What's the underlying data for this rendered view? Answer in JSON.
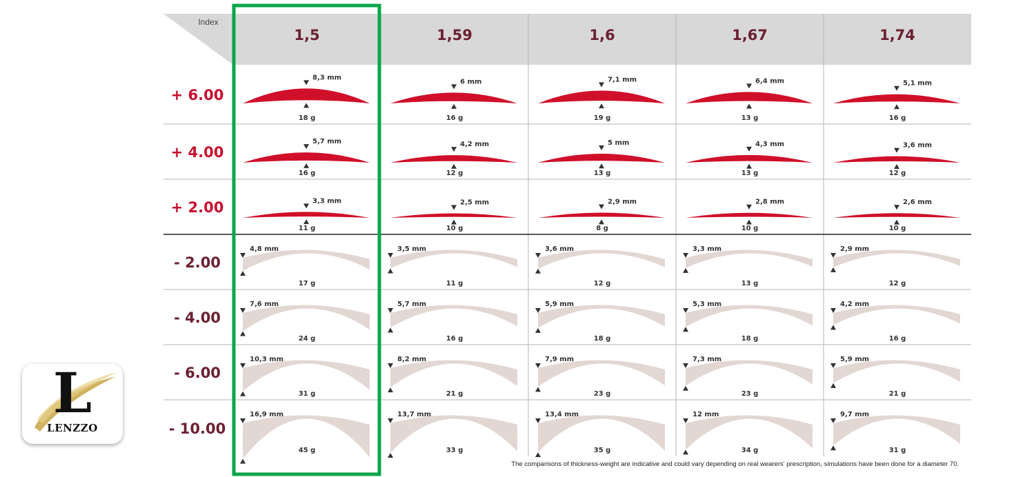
{
  "header": {
    "index_label": "Index",
    "columns": [
      "1,5",
      "1,59",
      "1,6",
      "1,67",
      "1,74"
    ]
  },
  "rows": [
    {
      "power": "+ 6.00",
      "sign": "plus",
      "cells": [
        {
          "thickness": "8,3 mm",
          "thickness_value": 8.3,
          "weight": "18 g"
        },
        {
          "thickness": "6 mm",
          "thickness_value": 6.0,
          "weight": "16 g"
        },
        {
          "thickness": "7,1 mm",
          "thickness_value": 7.1,
          "weight": "19 g"
        },
        {
          "thickness": "6,4 mm",
          "thickness_value": 6.4,
          "weight": "13 g"
        },
        {
          "thickness": "5,1 mm",
          "thickness_value": 5.1,
          "weight": "16 g"
        }
      ]
    },
    {
      "power": "+ 4.00",
      "sign": "plus",
      "cells": [
        {
          "thickness": "5,7 mm",
          "thickness_value": 5.7,
          "weight": "16 g"
        },
        {
          "thickness": "4,2 mm",
          "thickness_value": 4.2,
          "weight": "12 g"
        },
        {
          "thickness": "5 mm",
          "thickness_value": 5.0,
          "weight": "13 g"
        },
        {
          "thickness": "4,3 mm",
          "thickness_value": 4.3,
          "weight": "13 g"
        },
        {
          "thickness": "3,6 mm",
          "thickness_value": 3.6,
          "weight": "12 g"
        }
      ]
    },
    {
      "power": "+ 2.00",
      "sign": "plus",
      "cells": [
        {
          "thickness": "3,3 mm",
          "thickness_value": 3.3,
          "weight": "11 g"
        },
        {
          "thickness": "2,5 mm",
          "thickness_value": 2.5,
          "weight": "10 g"
        },
        {
          "thickness": "2,9 mm",
          "thickness_value": 2.9,
          "weight": "8 g"
        },
        {
          "thickness": "2,8 mm",
          "thickness_value": 2.8,
          "weight": "10 g"
        },
        {
          "thickness": "2,6 mm",
          "thickness_value": 2.6,
          "weight": "10 g"
        }
      ]
    },
    {
      "power": "- 2.00",
      "sign": "minus",
      "cells": [
        {
          "thickness": "4,8 mm",
          "thickness_value": 4.8,
          "weight": "17 g"
        },
        {
          "thickness": "3,5 mm",
          "thickness_value": 3.5,
          "weight": "11 g"
        },
        {
          "thickness": "3,6 mm",
          "thickness_value": 3.6,
          "weight": "12 g"
        },
        {
          "thickness": "3,3 mm",
          "thickness_value": 3.3,
          "weight": "13 g"
        },
        {
          "thickness": "2,9 mm",
          "thickness_value": 2.9,
          "weight": "12 g"
        }
      ]
    },
    {
      "power": "- 4.00",
      "sign": "minus",
      "cells": [
        {
          "thickness": "7,6 mm",
          "thickness_value": 7.6,
          "weight": "24 g"
        },
        {
          "thickness": "5,7 mm",
          "thickness_value": 5.7,
          "weight": "16 g"
        },
        {
          "thickness": "5,9 mm",
          "thickness_value": 5.9,
          "weight": "18 g"
        },
        {
          "thickness": "5,3 mm",
          "thickness_value": 5.3,
          "weight": "18 g"
        },
        {
          "thickness": "4,2 mm",
          "thickness_value": 4.2,
          "weight": "16 g"
        }
      ]
    },
    {
      "power": "- 6.00",
      "sign": "minus",
      "cells": [
        {
          "thickness": "10,3 mm",
          "thickness_value": 10.3,
          "weight": "31 g"
        },
        {
          "thickness": "8,2 mm",
          "thickness_value": 8.2,
          "weight": "21 g"
        },
        {
          "thickness": "7,9 mm",
          "thickness_value": 7.9,
          "weight": "23 g"
        },
        {
          "thickness": "7,3 mm",
          "thickness_value": 7.3,
          "weight": "23 g"
        },
        {
          "thickness": "5,9 mm",
          "thickness_value": 5.9,
          "weight": "21 g"
        }
      ]
    },
    {
      "power": "- 10.00",
      "sign": "minus",
      "cells": [
        {
          "thickness": "16,9 mm",
          "thickness_value": 16.9,
          "weight": "45 g"
        },
        {
          "thickness": "13,7 mm",
          "thickness_value": 13.7,
          "weight": "33 g"
        },
        {
          "thickness": "13,4 mm",
          "thickness_value": 13.4,
          "weight": "35 g"
        },
        {
          "thickness": "12 mm",
          "thickness_value": 12.0,
          "weight": "34 g"
        },
        {
          "thickness": "9,7 mm",
          "thickness_value": 9.7,
          "weight": "31 g"
        }
      ]
    }
  ],
  "footnote": "The comparisons of thickness-weight are indicative and could vary depending on real wearers' prescription, simulations have been done for a diameter 70.",
  "logo": {
    "letter": "L",
    "name": "LENZZO"
  },
  "colors": {
    "plus_lens": "#d0102a",
    "minus_lens": "#e3d7d3",
    "plus_label": "#c8102e",
    "minus_label": "#6b2130",
    "header_bg": "#d8d8d8",
    "header_text": "#6b2130",
    "highlight": "#0aa64a",
    "gold": "#c9a544"
  },
  "highlight_column": 0
}
